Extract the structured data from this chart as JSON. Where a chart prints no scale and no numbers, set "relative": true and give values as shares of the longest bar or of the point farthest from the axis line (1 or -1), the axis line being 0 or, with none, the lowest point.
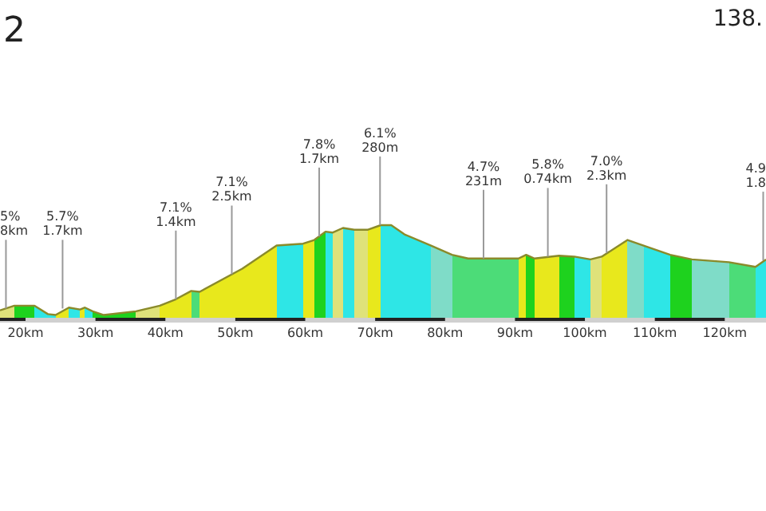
{
  "chart_data": {
    "type": "area",
    "title": "2",
    "subtitle": "138.",
    "relative": true,
    "x": [
      16.35,
      18.4,
      21.3,
      23.2,
      24.3,
      26.2,
      27.8,
      28.5,
      29.6,
      31.2,
      35.8,
      39.2,
      41.5,
      43.7,
      44.9,
      51.0,
      55.9,
      59.7,
      61.3,
      62.9,
      63.9,
      65.4,
      67.0,
      68.9,
      70.8,
      72.3,
      74.2,
      78.0,
      81.0,
      83.3,
      90.5,
      91.6,
      92.8,
      96.3,
      98.5,
      100.8,
      102.4,
      106.1,
      108.4,
      112.2,
      115.3,
      120.6,
      124.4,
      125.9
    ],
    "series": [
      {
        "color": "#8a8a2a",
        "values": [
          0.08,
          0.13,
          0.13,
          0.04,
          0.03,
          0.11,
          0.09,
          0.11,
          0.07,
          0.03,
          0.07,
          0.13,
          0.2,
          0.29,
          0.28,
          0.53,
          0.78,
          0.8,
          0.84,
          0.93,
          0.92,
          0.97,
          0.95,
          0.95,
          1,
          1,
          0.9,
          0.78,
          0.68,
          0.64,
          0.64,
          0.68,
          0.64,
          0.67,
          0.66,
          0.63,
          0.66,
          0.84,
          0.78,
          0.68,
          0.63,
          0.6,
          0.55,
          0.63
        ],
        "colors": [
          "#dfe27a",
          "#1ed21e",
          "#2ee6e6",
          "#2ee6e6",
          "#e8e81c",
          "#2ee6e6",
          "#e8e81c",
          "#2ee6e6",
          "#1ed21e",
          "#1ed21e",
          "#dfe27a",
          "#e8e81c",
          "#e8e81c",
          "#4cdc78",
          "#e8e81c",
          "#e8e81c",
          "#2ee6e6",
          "#e8e81c",
          "#1ed21e",
          "#2ee6e6",
          "#dfe27a",
          "#2ee6e6",
          "#dfe27a",
          "#e8e81c",
          "#2ee6e6",
          "#2ee6e6",
          "#2ee6e6",
          "#7fdcc8",
          "#4cdc78",
          "#4cdc78",
          "#e8e81c",
          "#1ed21e",
          "#e8e81c",
          "#1ed21e",
          "#2ee6e6",
          "#dfe27a",
          "#e8e81c",
          "#7fdcc8",
          "#2ee6e6",
          "#1ed21e",
          "#7fdcc8",
          "#4cdc78",
          "#2ee6e6",
          "#e8e81c"
        ]
      }
    ],
    "xlim": [
      16.35,
      125.9
    ],
    "xticks": [
      {
        "value": 20,
        "label": "20km"
      },
      {
        "value": 30,
        "label": "30km"
      },
      {
        "value": 40,
        "label": "40km"
      },
      {
        "value": 50,
        "label": "50km"
      },
      {
        "value": 60,
        "label": "60km"
      },
      {
        "value": 70,
        "label": "70km"
      },
      {
        "value": 80,
        "label": "80km"
      },
      {
        "value": 90,
        "label": "90km"
      },
      {
        "value": 100,
        "label": "100km"
      },
      {
        "value": 110,
        "label": "110km"
      },
      {
        "value": 120,
        "label": "120km"
      }
    ],
    "grid": false,
    "annotations": [
      {
        "text": "5%\n8km",
        "x": 17.2,
        "y": 0.1
      },
      {
        "text": "5.7%\n1.7km",
        "x": 25.3,
        "y": 0.1
      },
      {
        "text": "7.1%\n1.4km",
        "x": 41.5,
        "y": 0.2
      },
      {
        "text": "7.1%\n2.5km",
        "x": 49.5,
        "y": 0.47
      },
      {
        "text": "7.8%\n1.7km",
        "x": 62.0,
        "y": 0.88
      },
      {
        "text": "6.1%\n280m",
        "x": 70.7,
        "y": 1
      },
      {
        "text": "4.7%\n231m",
        "x": 85.5,
        "y": 0.64
      },
      {
        "text": "5.8%\n0.74km",
        "x": 94.7,
        "y": 0.66
      },
      {
        "text": "7.0%\n2.3km",
        "x": 103.1,
        "y": 0.7
      },
      {
        "text": "4.9\n1.8",
        "x": 125.5,
        "y": 0.62
      }
    ]
  }
}
